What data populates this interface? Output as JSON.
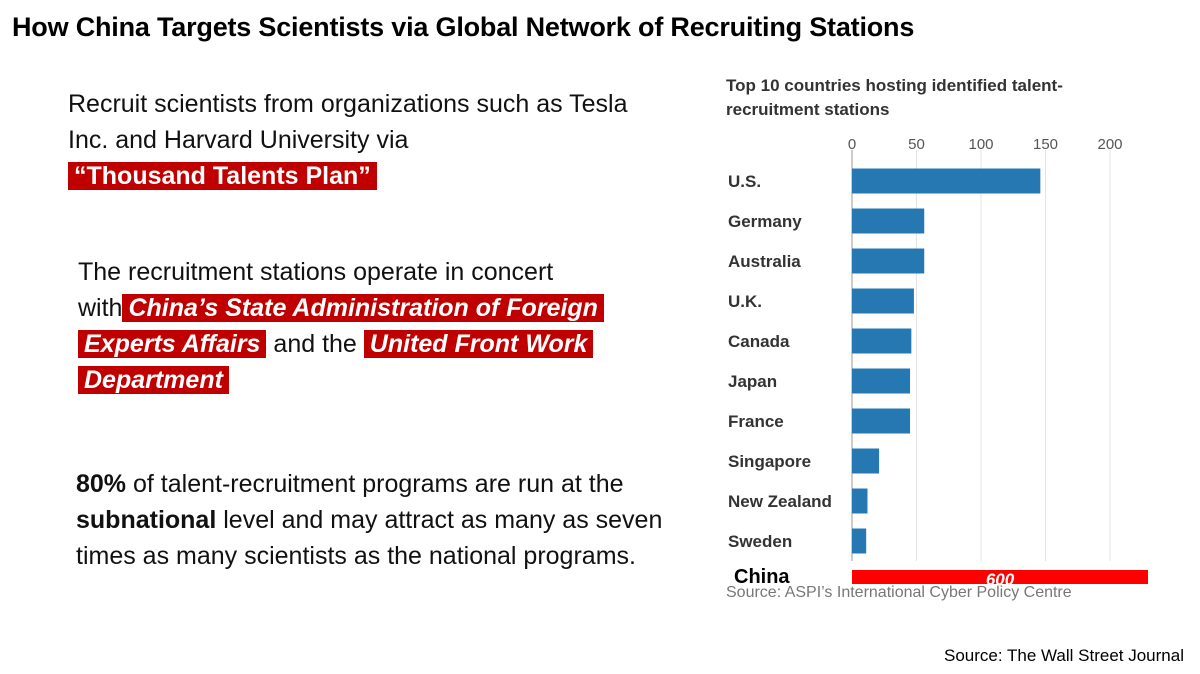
{
  "title": "How China Targets Scientists via Global Network of Recruiting Stations",
  "paragraph1": {
    "text": "Recruit scientists from organizations such as Tesla Inc. and Harvard University via",
    "highlight": "“Thousand Talents Plan”"
  },
  "paragraph2": {
    "text_a": "The recruitment stations operate in concert with",
    "highlight_a": "China’s State Administration of Foreign Experts Affairs",
    "text_b": "and the",
    "highlight_b": "United Front Work Department"
  },
  "paragraph3": {
    "bold_a": "80%",
    "text_a": "of talent-recruitment programs are run at the",
    "bold_b": "subnational",
    "text_b": "level and may attract as many as seven times as many scientists as the national programs."
  },
  "chart_data": {
    "type": "bar",
    "orientation": "horizontal",
    "title": "Top 10 countries hosting identified talent-recruitment stations",
    "categories": [
      "U.S.",
      "Germany",
      "Australia",
      "U.K.",
      "Canada",
      "Japan",
      "France",
      "Singapore",
      "New Zealand",
      "Sweden"
    ],
    "values": [
      146,
      56,
      56,
      48,
      46,
      45,
      45,
      21,
      12,
      11
    ],
    "xlim": [
      0,
      200
    ],
    "xticks": [
      0,
      50,
      100,
      150,
      200
    ],
    "grid": true,
    "bar_color": "#2678b2",
    "extra": {
      "category": "China",
      "value": 600,
      "label": "600",
      "color": "#ff0000"
    },
    "source": "Source: ASPI’s International Cyber Policy Centre"
  },
  "page_source": "Source: The Wall Street Journal"
}
